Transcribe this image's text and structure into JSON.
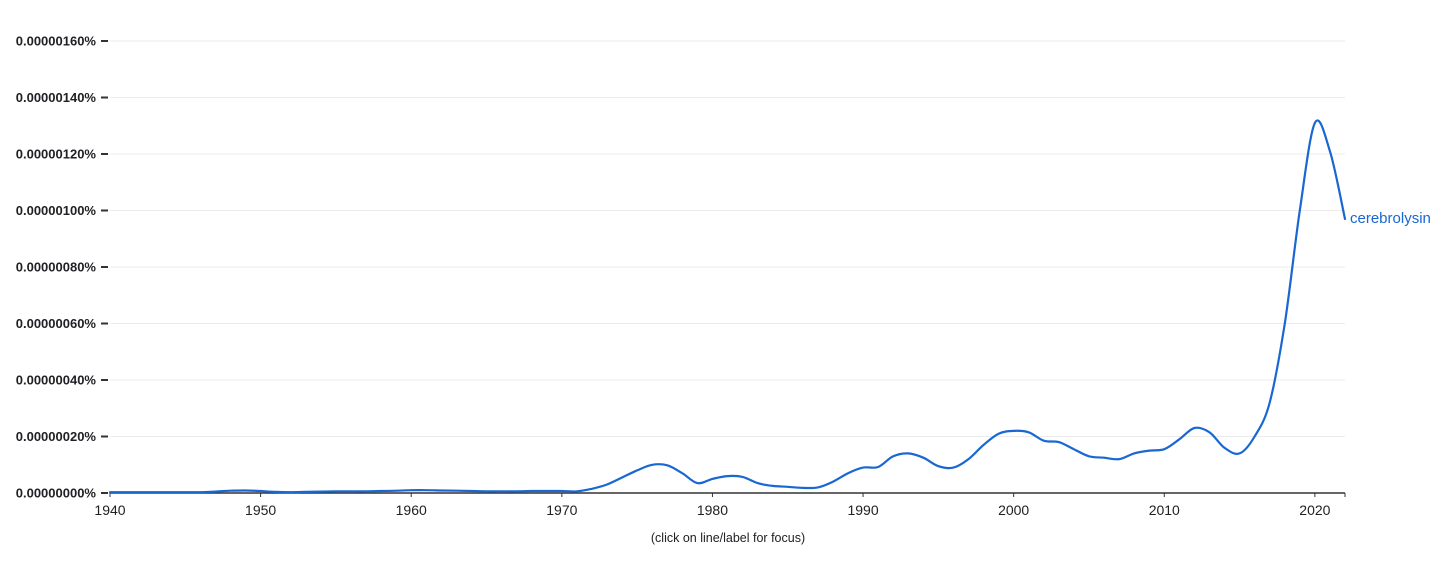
{
  "footer": {
    "note": "(click on line/label for focus)"
  },
  "chart_data": {
    "type": "line",
    "title": "",
    "xlabel": "",
    "ylabel": "",
    "grid": true,
    "legend_position": "end-of-line",
    "xlim": [
      1940,
      2022
    ],
    "ylim": [
      0,
      1.6e-06
    ],
    "x_ticks": [
      1940,
      1950,
      1960,
      1970,
      1980,
      1990,
      2000,
      2010,
      2020
    ],
    "y_ticks": [
      "0.00000000%",
      "0.00000020%",
      "0.00000040%",
      "0.00000060%",
      "0.00000080%",
      "0.00000100%",
      "0.00000120%",
      "0.00000140%",
      "0.00000160%"
    ],
    "y_unit": "percent of corpus",
    "colors": {
      "grid": "#ebebeb",
      "axis": "#333333",
      "tick": "#333333",
      "line": "#1967d2"
    },
    "series": [
      {
        "name": "cerebrolysin",
        "color": "#1967d2",
        "x": [
          1940,
          1941,
          1942,
          1943,
          1944,
          1945,
          1946,
          1947,
          1948,
          1949,
          1950,
          1951,
          1952,
          1953,
          1954,
          1955,
          1956,
          1957,
          1958,
          1959,
          1960,
          1961,
          1962,
          1963,
          1964,
          1965,
          1966,
          1967,
          1968,
          1969,
          1970,
          1971,
          1972,
          1973,
          1974,
          1975,
          1976,
          1977,
          1978,
          1979,
          1980,
          1981,
          1982,
          1983,
          1984,
          1985,
          1986,
          1987,
          1988,
          1989,
          1990,
          1991,
          1992,
          1993,
          1994,
          1995,
          1996,
          1997,
          1998,
          1999,
          2000,
          2001,
          2002,
          2003,
          2004,
          2005,
          2006,
          2007,
          2008,
          2009,
          2010,
          2011,
          2012,
          2013,
          2014,
          2015,
          2016,
          2017,
          2018,
          2019,
          2020,
          2021,
          2022
        ],
        "values": [
          0,
          0,
          0,
          0,
          1e-09,
          2e-09,
          3e-09,
          5e-09,
          8e-09,
          9e-09,
          7e-09,
          4e-09,
          3e-09,
          4e-09,
          5e-09,
          6e-09,
          6e-09,
          6e-09,
          7e-09,
          8e-09,
          1e-08,
          1e-08,
          9e-09,
          8e-09,
          7e-09,
          6e-09,
          6e-09,
          6e-09,
          7e-09,
          7e-09,
          7e-09,
          6e-09,
          1.5e-08,
          3e-08,
          5.5e-08,
          8e-08,
          1e-07,
          9.8e-08,
          7e-08,
          3.5e-08,
          5e-08,
          6e-08,
          5.7e-08,
          3.5e-08,
          2.5e-08,
          2.2e-08,
          1.8e-08,
          2e-08,
          4e-08,
          7e-08,
          9e-08,
          9.2e-08,
          1.3e-07,
          1.4e-07,
          1.25e-07,
          9.5e-08,
          9e-08,
          1.2e-07,
          1.7e-07,
          2.1e-07,
          2.2e-07,
          2.15e-07,
          1.85e-07,
          1.8e-07,
          1.55e-07,
          1.3e-07,
          1.25e-07,
          1.2e-07,
          1.4e-07,
          1.5e-07,
          1.55e-07,
          1.9e-07,
          2.3e-07,
          2.15e-07,
          1.6e-07,
          1.4e-07,
          2e-07,
          3.2e-07,
          6e-07,
          1e-06,
          1.31e-06,
          1.21e-06,
          9.7e-07
        ]
      }
    ]
  }
}
